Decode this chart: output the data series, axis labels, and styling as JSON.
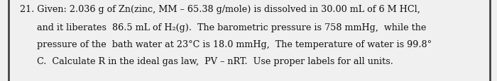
{
  "background_color": "#f0f0f0",
  "text_color": "#111111",
  "border_color": "#333333",
  "lines": [
    "21. Given: 2.036 g of Zn(zinc, MM – 65.38 g/mole) is dissolved in 30.00 mL of 6 M HCl,",
    "      and it liberates  86.5 mL of H₂(g).  The barometric pressure is 758 mmHg,  while the",
    "      pressure of the  bath water at 23°C is 18.0 mmHg,  The temperature of water is 99.8°",
    "      C.  Calculate R in the ideal gas law,  PV – nRT.  Use proper labels for all units."
  ],
  "font_size": 9.2,
  "fig_width": 7.0,
  "fig_height": 1.16,
  "dpi": 100
}
